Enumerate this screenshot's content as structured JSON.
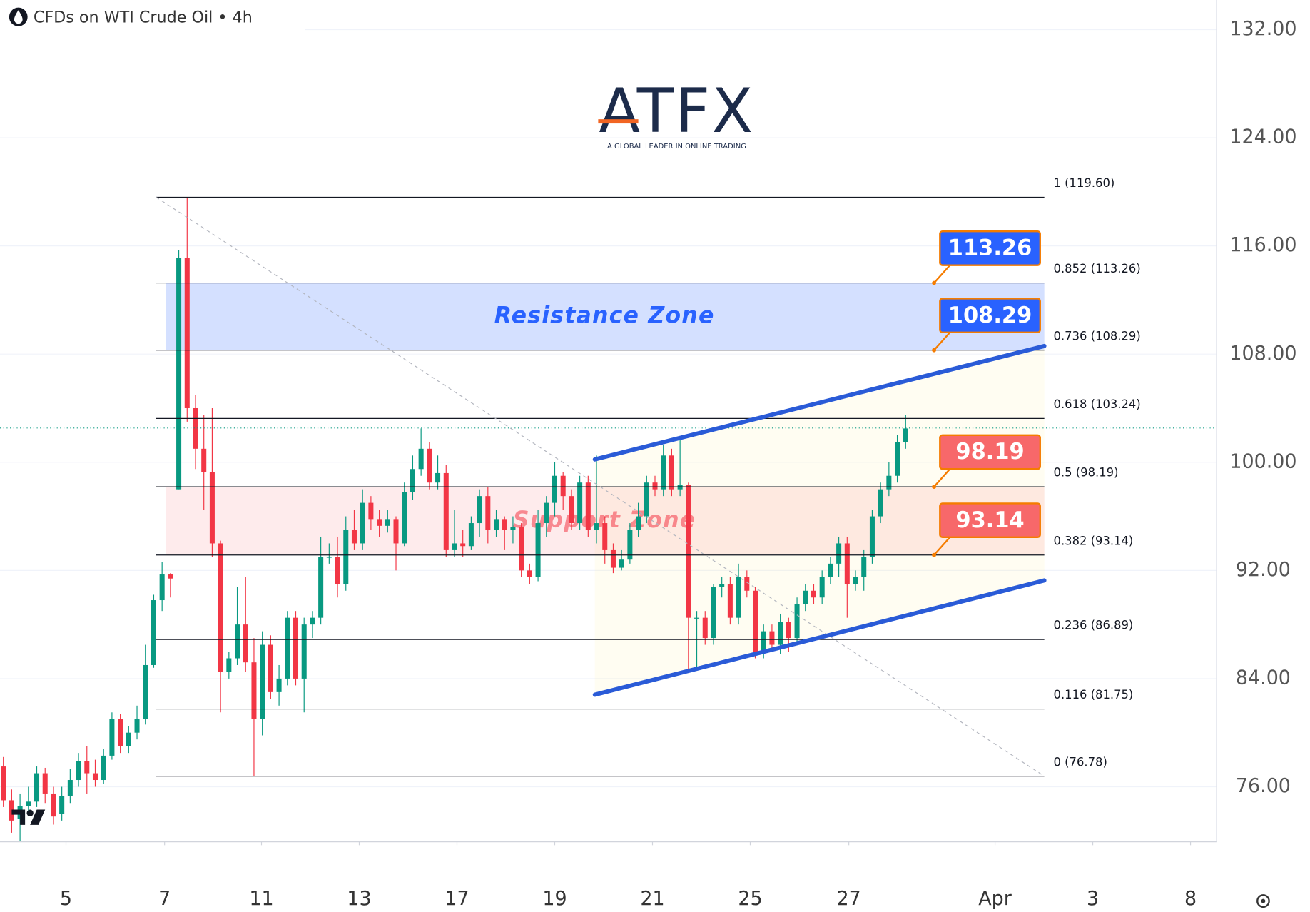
{
  "chart_data": {
    "type": "candlestick",
    "title": "CFDs on WTI Crude Oil • 4h",
    "logo": {
      "name": "ATFX",
      "tagline": "A GLOBAL LEADER IN ONLINE TRADING"
    },
    "up_color": "#089981",
    "down_color": "#f23645",
    "open": [
      77.5,
      75.0,
      73.6,
      74.6,
      74.9,
      77.0,
      75.5,
      74.0,
      75.3,
      76.5,
      77.9,
      77.0,
      76.5,
      78.3,
      81.0,
      79.0,
      80.0,
      81.0,
      85.0,
      89.8,
      91.7,
      98.0,
      115.1,
      104.0,
      101.0,
      99.3,
      94.0,
      84.5,
      85.5,
      88.0,
      85.2,
      81.0,
      86.5,
      83.0,
      84.0,
      88.5,
      84.0,
      88.0,
      88.5,
      93.0,
      93.0,
      91.0,
      95.0,
      94.0,
      97.0,
      95.8,
      95.3,
      95.8,
      94.0,
      97.8,
      99.5,
      101.0,
      98.5,
      99.2,
      93.5,
      94.0,
      93.8,
      95.5,
      97.5,
      95.0,
      95.8,
      95.0,
      95.2,
      92.0,
      91.5,
      95.5,
      97.0,
      99.0,
      97.5,
      95.5,
      98.5,
      95.0,
      95.5,
      93.5,
      92.2,
      92.8,
      95.0,
      96.0,
      98.5,
      98.0,
      100.5,
      98.0,
      98.3,
      88.5,
      88.5,
      87.0,
      90.8,
      91.0,
      88.5,
      91.5,
      90.5,
      86.0,
      87.5,
      86.5,
      88.2,
      87.0,
      89.5,
      90.5,
      90.0,
      91.5,
      92.5,
      94.0,
      91.0,
      91.5,
      93.0,
      96.0,
      98.0,
      99.0,
      101.5
    ],
    "high": [
      78.2,
      75.8,
      75.5,
      76.0,
      77.5,
      77.4,
      76.0,
      76.0,
      77.3,
      78.5,
      79.0,
      78.0,
      78.8,
      81.5,
      81.4,
      80.5,
      82.0,
      86.5,
      90.2,
      92.6,
      91.8,
      115.7,
      119.6,
      105.0,
      103.5,
      104.0,
      94.2,
      86.0,
      90.8,
      91.5,
      87.0,
      87.5,
      87.2,
      85.0,
      89.0,
      89.0,
      88.5,
      89.0,
      94.5,
      94.0,
      94.5,
      96.0,
      96.5,
      98.0,
      97.5,
      96.5,
      96.5,
      96.0,
      98.5,
      100.5,
      102.5,
      101.5,
      100.5,
      99.8,
      96.5,
      95.0,
      96.0,
      98.0,
      98.2,
      96.5,
      96.0,
      96.0,
      95.5,
      92.5,
      96.5,
      97.5,
      100.0,
      99.3,
      98.0,
      99.0,
      99.0,
      100.5,
      96.0,
      94.0,
      93.5,
      95.5,
      97.0,
      99.0,
      99.0,
      101.3,
      101.0,
      101.8,
      98.5,
      89.0,
      89.0,
      91.0,
      91.5,
      91.5,
      92.5,
      92.0,
      90.8,
      88.0,
      88.0,
      88.8,
      88.5,
      90.0,
      91.0,
      91.0,
      92.0,
      93.0,
      94.5,
      94.5,
      92.0,
      93.5,
      96.5,
      98.5,
      100.0,
      102.0,
      103.5
    ],
    "low": [
      74.5,
      72.6,
      72.0,
      74.0,
      74.5,
      74.8,
      73.2,
      73.5,
      74.8,
      76.0,
      75.5,
      76.0,
      76.2,
      78.0,
      78.5,
      78.5,
      79.5,
      80.6,
      84.8,
      89.0,
      90.0,
      98.0,
      103.0,
      99.5,
      96.5,
      93.0,
      81.5,
      84.0,
      85.0,
      84.5,
      76.78,
      79.8,
      82.5,
      82.0,
      83.5,
      83.5,
      81.5,
      87.0,
      88.0,
      92.5,
      90.0,
      90.5,
      93.5,
      93.5,
      95.0,
      94.5,
      94.8,
      92.0,
      93.8,
      97.2,
      99.0,
      98.0,
      98.0,
      93.0,
      93.0,
      93.0,
      93.5,
      94.5,
      94.0,
      94.5,
      93.5,
      94.0,
      91.5,
      91.0,
      91.2,
      94.5,
      96.0,
      96.5,
      95.0,
      95.0,
      94.5,
      94.0,
      92.5,
      91.8,
      92.0,
      92.5,
      94.5,
      95.5,
      97.5,
      97.5,
      97.5,
      97.5,
      84.5,
      84.8,
      86.5,
      86.5,
      90.0,
      88.0,
      88.0,
      90.0,
      85.5,
      85.5,
      86.0,
      85.8,
      86.0,
      86.5,
      89.0,
      89.5,
      89.5,
      91.0,
      91.5,
      88.5,
      90.5,
      90.5,
      92.5,
      95.5,
      97.5,
      98.5,
      101.0
    ],
    "close": [
      75.0,
      73.5,
      74.6,
      74.9,
      77.0,
      75.5,
      73.8,
      75.3,
      76.5,
      77.9,
      77.0,
      76.5,
      78.3,
      81.0,
      79.0,
      80.0,
      81.0,
      85.0,
      89.8,
      91.7,
      91.4,
      115.1,
      104.0,
      101.0,
      99.3,
      94.0,
      84.5,
      85.5,
      88.0,
      85.2,
      81.0,
      86.5,
      83.0,
      84.0,
      88.5,
      84.0,
      88.0,
      88.5,
      93.0,
      93.0,
      91.0,
      95.0,
      94.0,
      97.0,
      95.8,
      95.3,
      95.8,
      94.0,
      97.8,
      99.5,
      101.0,
      98.5,
      99.2,
      93.5,
      94.0,
      93.8,
      95.5,
      97.5,
      95.0,
      95.8,
      95.0,
      95.2,
      92.0,
      91.5,
      95.5,
      97.0,
      99.0,
      97.5,
      95.5,
      98.5,
      95.0,
      95.5,
      93.5,
      92.2,
      92.8,
      95.0,
      96.0,
      98.5,
      98.0,
      100.5,
      98.0,
      98.3,
      88.5,
      88.5,
      87.0,
      90.8,
      91.0,
      88.5,
      91.5,
      90.5,
      86.0,
      87.5,
      86.5,
      88.2,
      87.0,
      89.5,
      90.5,
      90.0,
      91.5,
      92.5,
      94.0,
      91.0,
      91.5,
      93.0,
      96.0,
      98.0,
      99.0,
      101.5,
      102.5
    ],
    "last_price": 102.53,
    "xlim": [
      -0.4,
      145.2
    ],
    "xticks": [
      {
        "value": 7.5,
        "label": "5"
      },
      {
        "value": 19.3,
        "label": "7"
      },
      {
        "value": 30.9,
        "label": "11"
      },
      {
        "value": 42.6,
        "label": "13"
      },
      {
        "value": 54.3,
        "label": "17"
      },
      {
        "value": 66.0,
        "label": "19"
      },
      {
        "value": 77.7,
        "label": "21"
      },
      {
        "value": 89.4,
        "label": "25"
      },
      {
        "value": 101.2,
        "label": "27"
      },
      {
        "value": 118.7,
        "label": "Apr"
      },
      {
        "value": 130.4,
        "label": "3"
      },
      {
        "value": 142.1,
        "label": "8"
      }
    ],
    "ylim": [
      71.93,
      134.19
    ],
    "yticks": [
      {
        "value": 132,
        "label": "132.00"
      },
      {
        "value": 124,
        "label": "124.00"
      },
      {
        "value": 116,
        "label": "116.00"
      },
      {
        "value": 108,
        "label": "108.00"
      },
      {
        "value": 100,
        "label": "100.00"
      },
      {
        "value": 92,
        "label": "92.00"
      },
      {
        "value": 84,
        "label": "84.00"
      },
      {
        "value": 76,
        "label": "76.00"
      }
    ],
    "grid": true,
    "fib_range": [
      18.3,
      124.6
    ],
    "fib_levels": [
      {
        "value": 119.6,
        "label": "1 (119.60)"
      },
      {
        "value": 113.26,
        "label": "0.852 (113.26)"
      },
      {
        "value": 108.29,
        "label": "0.736 (108.29)"
      },
      {
        "value": 103.24,
        "label": "0.618 (103.24)"
      },
      {
        "value": 98.19,
        "label": "0.5 (98.19)"
      },
      {
        "value": 93.14,
        "label": "0.382 (93.14)"
      },
      {
        "value": 86.89,
        "label": "0.236 (86.89)"
      },
      {
        "value": 81.75,
        "label": "0.116 (81.75)"
      },
      {
        "value": 76.78,
        "label": "0 (76.78)"
      }
    ],
    "zones": [
      {
        "label": "Resistance Zone",
        "from": 108.29,
        "to": 113.26,
        "color": "#2962ff"
      },
      {
        "label": "Support Zone",
        "from": 93.14,
        "to": 98.19,
        "color": "#f23645"
      }
    ],
    "callouts": [
      {
        "value": 113.26,
        "color": "#2962ff"
      },
      {
        "value": 108.29,
        "color": "#2962ff"
      },
      {
        "value": 98.19,
        "color": "#f7686a"
      },
      {
        "value": 93.14,
        "color": "#f7686a"
      }
    ],
    "channel": [
      {
        "x": [
          70.8,
          124.6
        ],
        "y": [
          100.21,
          108.6
        ]
      },
      {
        "x": [
          70.8,
          124.6
        ],
        "y": [
          82.81,
          91.26
        ]
      }
    ],
    "channel_color": "#2a5bd7",
    "trend_line": {
      "x": [
        18.3,
        124.6
      ],
      "y": [
        119.6,
        76.78
      ]
    }
  }
}
